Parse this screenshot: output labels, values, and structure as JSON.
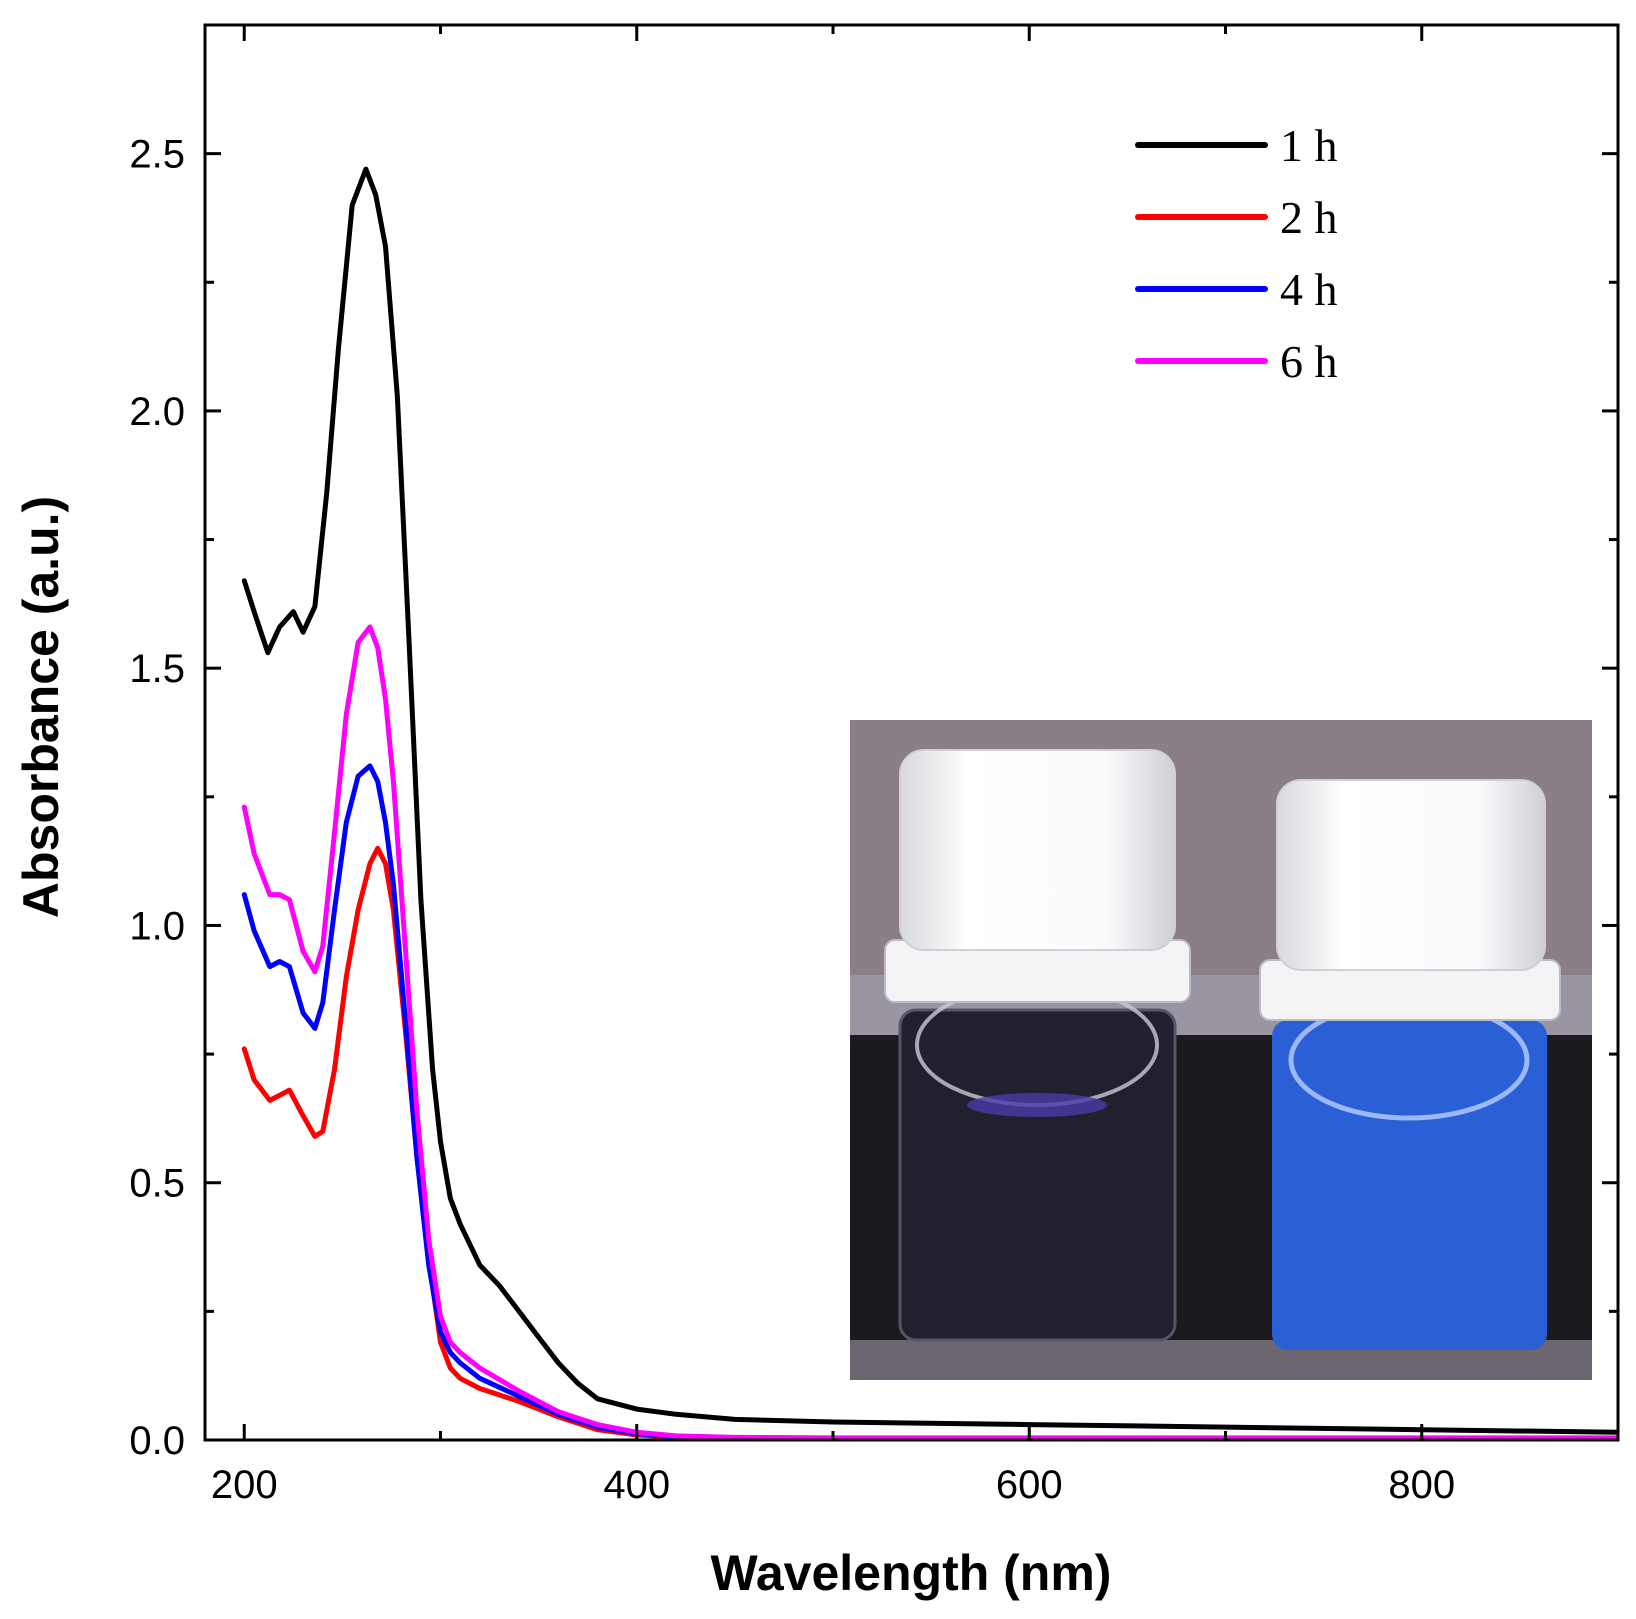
{
  "chart_data": {
    "type": "line",
    "title": "",
    "xlabel": "Wavelength (nm)",
    "ylabel": "Absorbance (a.u.)",
    "xlim": [
      180,
      900
    ],
    "ylim": [
      0,
      2.75
    ],
    "x_ticks": [
      200,
      400,
      600,
      800
    ],
    "x_tick_labels": [
      "200",
      "400",
      "600",
      "800"
    ],
    "y_ticks": [
      0,
      0.5,
      1.0,
      1.5,
      2.0,
      2.5
    ],
    "y_tick_labels": [
      "0.0",
      "0.5",
      "1.0",
      "1.5",
      "2.0",
      "2.5"
    ],
    "grid": false,
    "legend_position": "top-right",
    "series": [
      {
        "name": "1 h",
        "color": "#000000",
        "x": [
          200,
          205,
          212,
          218,
          225,
          230,
          236,
          242,
          248,
          255,
          262,
          267,
          272,
          278,
          284,
          290,
          296,
          300,
          305,
          310,
          320,
          330,
          340,
          350,
          360,
          370,
          380,
          400,
          420,
          450,
          500,
          600,
          700,
          800,
          900
        ],
        "y": [
          1.67,
          1.61,
          1.53,
          1.58,
          1.61,
          1.57,
          1.62,
          1.84,
          2.12,
          2.4,
          2.47,
          2.42,
          2.32,
          2.03,
          1.55,
          1.05,
          0.72,
          0.58,
          0.47,
          0.42,
          0.34,
          0.3,
          0.25,
          0.2,
          0.15,
          0.11,
          0.08,
          0.06,
          0.05,
          0.04,
          0.035,
          0.03,
          0.025,
          0.02,
          0.015
        ]
      },
      {
        "name": "2 h",
        "color": "#ff0000",
        "x": [
          200,
          205,
          213,
          218,
          223,
          230,
          236,
          240,
          246,
          252,
          258,
          264,
          268,
          272,
          276,
          282,
          288,
          294,
          300,
          305,
          310,
          320,
          340,
          360,
          380,
          400,
          420,
          450,
          500,
          600,
          700,
          800,
          900
        ],
        "y": [
          0.76,
          0.7,
          0.66,
          0.67,
          0.68,
          0.63,
          0.59,
          0.6,
          0.72,
          0.9,
          1.03,
          1.12,
          1.15,
          1.12,
          1.03,
          0.8,
          0.55,
          0.35,
          0.19,
          0.14,
          0.12,
          0.1,
          0.075,
          0.045,
          0.02,
          0.01,
          0.005,
          0.003,
          0.002,
          0.002,
          0.002,
          0.002,
          0.002
        ]
      },
      {
        "name": "4 h",
        "color": "#0000ff",
        "x": [
          200,
          205,
          213,
          218,
          223,
          230,
          236,
          240,
          246,
          252,
          258,
          264,
          268,
          272,
          276,
          282,
          288,
          294,
          300,
          305,
          310,
          320,
          340,
          360,
          380,
          400,
          420,
          450,
          500,
          600,
          700,
          800,
          900
        ],
        "y": [
          1.06,
          0.99,
          0.92,
          0.93,
          0.92,
          0.83,
          0.8,
          0.85,
          1.03,
          1.2,
          1.29,
          1.31,
          1.28,
          1.2,
          1.08,
          0.82,
          0.55,
          0.34,
          0.21,
          0.17,
          0.15,
          0.12,
          0.085,
          0.05,
          0.025,
          0.012,
          0.006,
          0.004,
          0.003,
          0.003,
          0.003,
          0.003,
          0.003
        ]
      },
      {
        "name": "6 h",
        "color": "#ff00ff",
        "x": [
          200,
          205,
          213,
          218,
          223,
          230,
          236,
          240,
          246,
          252,
          258,
          264,
          268,
          272,
          276,
          282,
          288,
          294,
          300,
          305,
          310,
          320,
          340,
          360,
          380,
          400,
          420,
          450,
          500,
          600,
          700,
          800,
          900
        ],
        "y": [
          1.23,
          1.14,
          1.06,
          1.06,
          1.05,
          0.95,
          0.91,
          0.96,
          1.18,
          1.41,
          1.55,
          1.58,
          1.54,
          1.44,
          1.28,
          0.96,
          0.64,
          0.39,
          0.24,
          0.19,
          0.17,
          0.14,
          0.095,
          0.055,
          0.03,
          0.015,
          0.008,
          0.005,
          0.004,
          0.004,
          0.004,
          0.004,
          0.004
        ]
      }
    ]
  },
  "inset_photo": {
    "background_color": "#8a7f88",
    "shelf_color": "#1a1a1f",
    "cap_color": "#f5f5f5",
    "left_vial_liquid_color": "#20202e",
    "right_vial_liquid_color": "#2a5fd6"
  }
}
